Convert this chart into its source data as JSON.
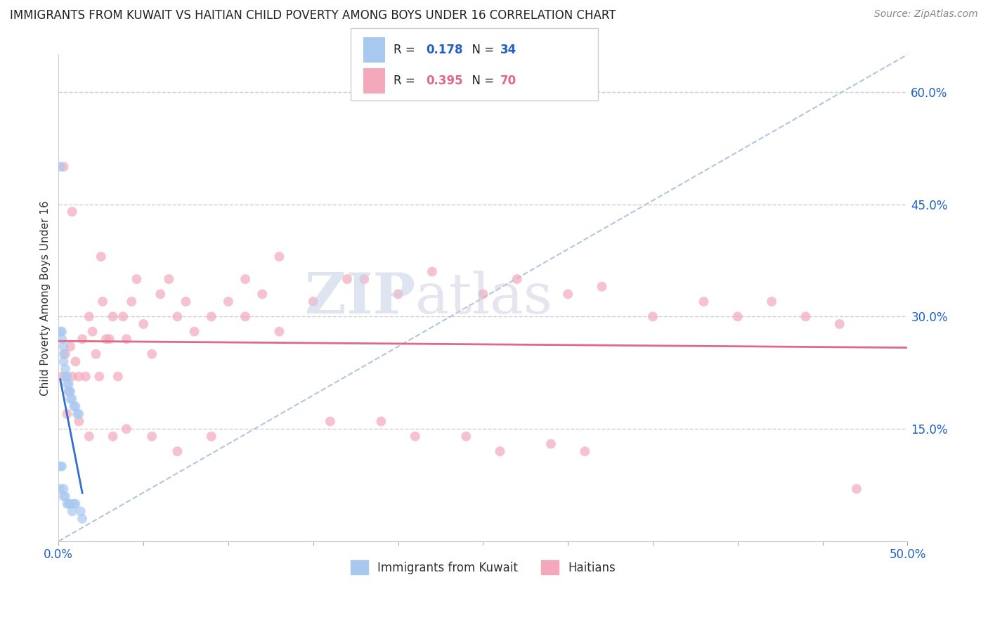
{
  "title": "IMMIGRANTS FROM KUWAIT VS HAITIAN CHILD POVERTY AMONG BOYS UNDER 16 CORRELATION CHART",
  "source": "Source: ZipAtlas.com",
  "ylabel": "Child Poverty Among Boys Under 16",
  "xlim": [
    0.0,
    0.5
  ],
  "ylim": [
    0.0,
    0.65
  ],
  "yticks_right": [
    0.15,
    0.3,
    0.45,
    0.6
  ],
  "ytick_right_labels": [
    "15.0%",
    "30.0%",
    "45.0%",
    "60.0%"
  ],
  "legend1_R": "0.178",
  "legend1_N": "34",
  "legend2_R": "0.395",
  "legend2_N": "70",
  "blue_color": "#a8c8f0",
  "pink_color": "#f4a8bc",
  "blue_line_color": "#3070d0",
  "pink_line_color": "#e06888",
  "diag_color": "#a0b8d8",
  "watermark_zip": "ZIP",
  "watermark_atlas": "atlas",
  "kuwait_x": [
    0.001,
    0.001,
    0.001,
    0.002,
    0.002,
    0.003,
    0.003,
    0.003,
    0.003,
    0.004,
    0.004,
    0.004,
    0.005,
    0.005,
    0.005,
    0.006,
    0.006,
    0.006,
    0.007,
    0.007,
    0.007,
    0.008,
    0.008,
    0.009,
    0.009,
    0.01,
    0.01,
    0.011,
    0.012,
    0.013,
    0.014,
    0.001,
    0.002,
    0.003
  ],
  "kuwait_y": [
    0.5,
    0.28,
    0.07,
    0.28,
    0.27,
    0.26,
    0.25,
    0.24,
    0.06,
    0.23,
    0.22,
    0.06,
    0.22,
    0.21,
    0.05,
    0.21,
    0.2,
    0.05,
    0.2,
    0.19,
    0.05,
    0.19,
    0.04,
    0.18,
    0.05,
    0.18,
    0.05,
    0.17,
    0.17,
    0.04,
    0.03,
    0.1,
    0.1,
    0.07
  ],
  "haitian_x": [
    0.002,
    0.004,
    0.006,
    0.007,
    0.008,
    0.01,
    0.012,
    0.014,
    0.016,
    0.018,
    0.02,
    0.022,
    0.024,
    0.026,
    0.028,
    0.03,
    0.032,
    0.035,
    0.038,
    0.04,
    0.043,
    0.046,
    0.05,
    0.055,
    0.06,
    0.065,
    0.07,
    0.075,
    0.08,
    0.09,
    0.1,
    0.11,
    0.12,
    0.13,
    0.15,
    0.17,
    0.18,
    0.2,
    0.22,
    0.25,
    0.27,
    0.3,
    0.32,
    0.35,
    0.38,
    0.4,
    0.42,
    0.44,
    0.46,
    0.003,
    0.005,
    0.008,
    0.012,
    0.018,
    0.025,
    0.032,
    0.04,
    0.055,
    0.07,
    0.09,
    0.11,
    0.13,
    0.16,
    0.19,
    0.21,
    0.24,
    0.26,
    0.29,
    0.31,
    0.47
  ],
  "haitian_y": [
    0.22,
    0.25,
    0.2,
    0.26,
    0.22,
    0.24,
    0.22,
    0.27,
    0.22,
    0.3,
    0.28,
    0.25,
    0.22,
    0.32,
    0.27,
    0.27,
    0.3,
    0.22,
    0.3,
    0.27,
    0.32,
    0.35,
    0.29,
    0.25,
    0.33,
    0.35,
    0.3,
    0.32,
    0.28,
    0.3,
    0.32,
    0.35,
    0.33,
    0.38,
    0.32,
    0.35,
    0.35,
    0.33,
    0.36,
    0.33,
    0.35,
    0.33,
    0.34,
    0.3,
    0.32,
    0.3,
    0.32,
    0.3,
    0.29,
    0.5,
    0.17,
    0.44,
    0.16,
    0.14,
    0.38,
    0.14,
    0.15,
    0.14,
    0.12,
    0.14,
    0.3,
    0.28,
    0.16,
    0.16,
    0.14,
    0.14,
    0.12,
    0.13,
    0.12,
    0.07
  ]
}
